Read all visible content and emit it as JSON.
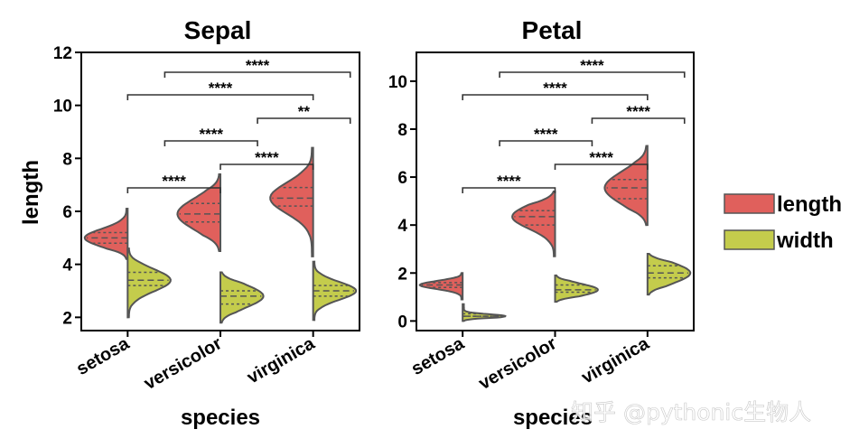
{
  "chart_data": [
    {
      "type": "violin",
      "title": "Sepal",
      "xlabel": "species",
      "ylabel": "length",
      "categories": [
        "setosa",
        "versicolor",
        "virginica"
      ],
      "ylim": [
        1.5,
        12
      ],
      "yticks": [
        2,
        4,
        6,
        8,
        10,
        12
      ],
      "split": true,
      "series": [
        {
          "name": "length",
          "color": "#e0605c",
          "quartiles": [
            [
              4.8,
              5.0,
              5.2
            ],
            [
              5.6,
              5.9,
              6.3
            ],
            [
              6.2,
              6.5,
              6.9
            ]
          ],
          "range": [
            [
              4.2,
              6.1
            ],
            [
              4.5,
              7.4
            ],
            [
              4.3,
              8.4
            ]
          ]
        },
        {
          "name": "width",
          "color": "#c4cc4c",
          "quartiles": [
            [
              3.2,
              3.4,
              3.7
            ],
            [
              2.5,
              2.8,
              3.0
            ],
            [
              2.8,
              3.0,
              3.2
            ]
          ],
          "range": [
            [
              2.0,
              4.6
            ],
            [
              1.8,
              3.7
            ],
            [
              1.9,
              4.1
            ]
          ]
        }
      ],
      "annotations": [
        {
          "from": 0,
          "to": 1,
          "label": "****"
        },
        {
          "from": 1,
          "to": 2,
          "label": "****"
        },
        {
          "from": 0.4,
          "to": 1.4,
          "label": "****"
        },
        {
          "from": 1.4,
          "to": 2.4,
          "label": "**"
        },
        {
          "from": 0,
          "to": 2,
          "label": "****"
        },
        {
          "from": 0.4,
          "to": 2.4,
          "label": "****"
        }
      ]
    },
    {
      "type": "violin",
      "title": "Petal",
      "xlabel": "species",
      "ylabel": "",
      "categories": [
        "setosa",
        "versicolor",
        "virginica"
      ],
      "ylim": [
        -0.4,
        11.2
      ],
      "yticks": [
        0,
        2,
        4,
        6,
        8,
        10
      ],
      "split": true,
      "series": [
        {
          "name": "length",
          "color": "#e0605c",
          "quartiles": [
            [
              1.4,
              1.5,
              1.6
            ],
            [
              4.0,
              4.35,
              4.6
            ],
            [
              5.1,
              5.55,
              5.9
            ]
          ],
          "range": [
            [
              0.9,
              2.0
            ],
            [
              2.7,
              5.4
            ],
            [
              4.0,
              7.3
            ]
          ]
        },
        {
          "name": "width",
          "color": "#c4cc4c",
          "quartiles": [
            [
              0.2,
              0.2,
              0.3
            ],
            [
              1.2,
              1.3,
              1.5
            ],
            [
              1.8,
              2.0,
              2.3
            ]
          ],
          "range": [
            [
              0.0,
              0.7
            ],
            [
              0.8,
              1.9
            ],
            [
              1.1,
              2.8
            ]
          ]
        }
      ],
      "annotations": [
        {
          "from": 0,
          "to": 1,
          "label": "****"
        },
        {
          "from": 1,
          "to": 2,
          "label": "****"
        },
        {
          "from": 0.4,
          "to": 1.4,
          "label": "****"
        },
        {
          "from": 1.4,
          "to": 2.4,
          "label": "****"
        },
        {
          "from": 0,
          "to": 2,
          "label": "****"
        },
        {
          "from": 0.4,
          "to": 2.4,
          "label": "****"
        }
      ]
    }
  ],
  "legend": {
    "placement": "right",
    "items": [
      {
        "label": "length",
        "color": "#e0605c"
      },
      {
        "label": "width",
        "color": "#c4cc4c"
      }
    ]
  },
  "watermark": "知乎 @pythonic生物人"
}
